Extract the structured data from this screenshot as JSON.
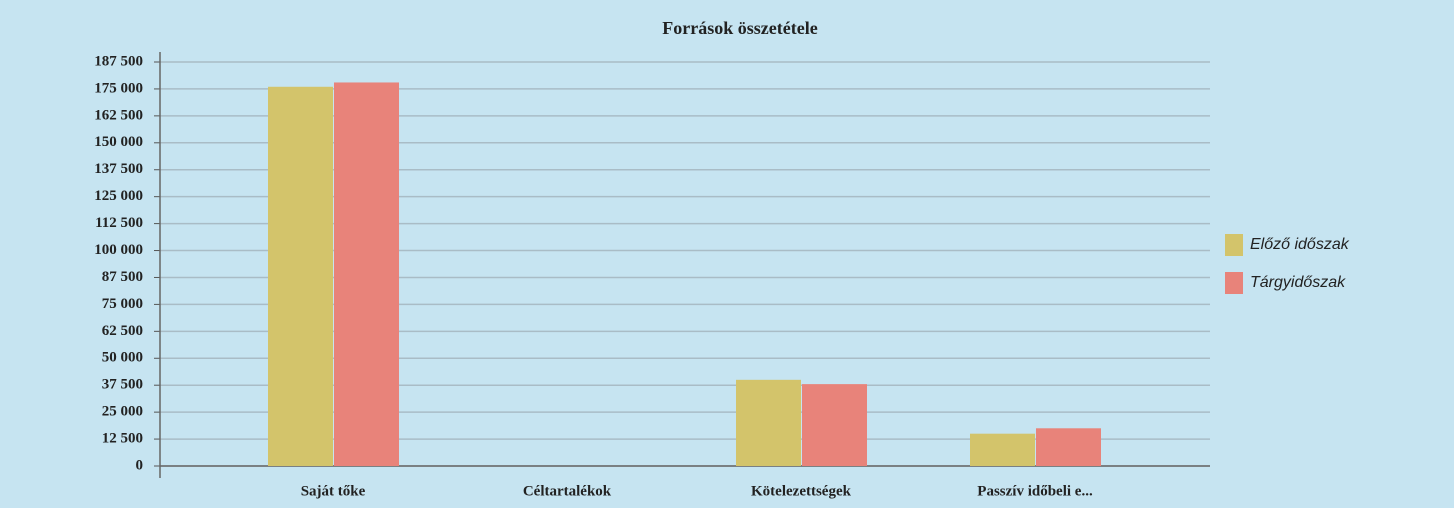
{
  "chart_data": {
    "type": "bar",
    "title": "Források összetétele",
    "categories": [
      "Saját tőke",
      "Céltartalékok",
      "Kötelezettségek",
      "Passzív időbeli e..."
    ],
    "series": [
      {
        "name": "Előző időszak",
        "color": "#d3c46b",
        "values": [
          176000,
          0,
          40000,
          15000
        ]
      },
      {
        "name": "Tárgyidőszak",
        "color": "#e8837a",
        "values": [
          178000,
          0,
          38000,
          17500
        ]
      }
    ],
    "ylim": [
      0,
      187500
    ],
    "yticks": [
      0,
      {
        "value": 12500,
        "label": "12 500"
      },
      {
        "value": 25000,
        "label": "25 000"
      },
      {
        "value": 37500,
        "label": "37 500"
      },
      {
        "value": 50000,
        "label": "50 000"
      },
      {
        "value": 62500,
        "label": "62 500"
      },
      {
        "value": 75000,
        "label": "75 000"
      },
      {
        "value": 87500,
        "label": "87 500"
      },
      {
        "value": 100000,
        "label": "100 000"
      },
      {
        "value": 112500,
        "label": "112 500"
      },
      {
        "value": 125000,
        "label": "125 000"
      },
      {
        "value": 137500,
        "label": "137 500"
      },
      {
        "value": 150000,
        "label": "150 000"
      },
      {
        "value": 162500,
        "label": "162 500"
      },
      {
        "value": 175000,
        "label": "175 000"
      },
      {
        "value": 187500,
        "label": "187 500"
      }
    ],
    "grid": true,
    "legend": "right"
  }
}
